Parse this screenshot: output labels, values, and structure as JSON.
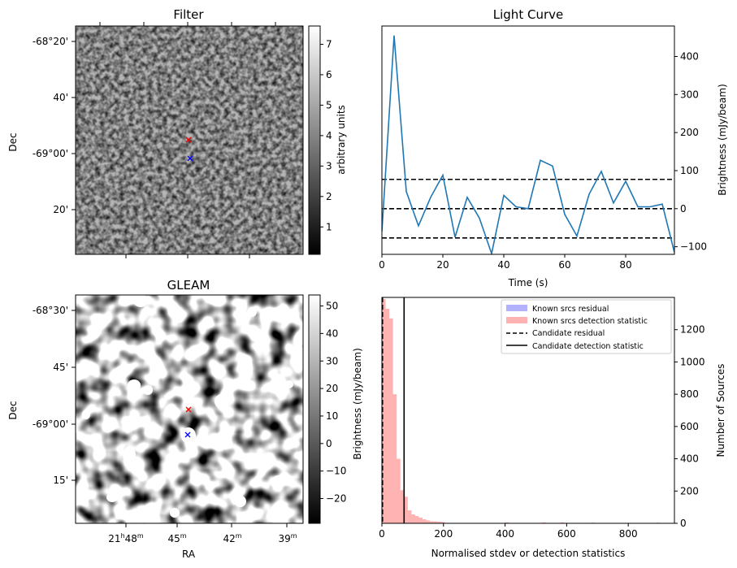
{
  "chart_data": [
    {
      "type": "heatmap",
      "title": "Filter",
      "xlabel": "",
      "ylabel": "Dec",
      "ytick_labels": [
        "-68°20'",
        "40'",
        "-69°00'",
        "20'"
      ],
      "colorbar": {
        "label": "arbitrary units",
        "range": [
          0.1,
          7.6
        ],
        "ticks": [
          1,
          2,
          3,
          4,
          5,
          6,
          7
        ],
        "colormap": "gray"
      },
      "markers": [
        {
          "label": "red x",
          "color": "#ff0000"
        },
        {
          "label": "blue x",
          "color": "#0000ff"
        }
      ]
    },
    {
      "type": "line",
      "title": "Light Curve",
      "xlabel": "Time (s)",
      "ylabel": "Brightness (mJy/beam)",
      "xlim": [
        0,
        96
      ],
      "ylim": [
        -120,
        480
      ],
      "xticks": [
        0,
        20,
        40,
        60,
        80
      ],
      "yticks": [
        -100,
        0,
        100,
        200,
        300,
        400
      ],
      "line_color": "#1f77b4",
      "x": [
        0,
        4,
        8,
        12,
        16,
        20,
        24,
        28,
        32,
        36,
        40,
        44,
        48,
        52,
        56,
        60,
        64,
        68,
        72,
        76,
        80,
        84,
        88,
        92,
        96
      ],
      "values": [
        -60,
        455,
        45,
        -45,
        30,
        88,
        -75,
        30,
        -25,
        -118,
        35,
        5,
        0,
        127,
        112,
        -15,
        -72,
        38,
        98,
        15,
        72,
        5,
        5,
        12,
        -115
      ],
      "hlines": [
        {
          "y": 77,
          "style": "dashed",
          "color": "#000000"
        },
        {
          "y": 0,
          "style": "dashed",
          "color": "#000000"
        },
        {
          "y": -77,
          "style": "dashed",
          "color": "#000000"
        }
      ]
    },
    {
      "type": "heatmap",
      "title": "GLEAM",
      "xlabel": "RA",
      "ylabel": "Dec",
      "xtick_labels": [
        {
          "main": "21",
          "sup1": "h",
          "mid": "48",
          "sup2": "m"
        },
        {
          "main": "",
          "sup1": "",
          "mid": "45",
          "sup2": "m"
        },
        {
          "main": "",
          "sup1": "",
          "mid": "42",
          "sup2": "m"
        },
        {
          "main": "",
          "sup1": "",
          "mid": "39",
          "sup2": "m"
        }
      ],
      "ytick_labels": [
        "-68°30'",
        "45'",
        "-69°00'",
        "15'"
      ],
      "colorbar": {
        "label": "Brightness (mJy/beam)",
        "range": [
          -29,
          54
        ],
        "ticks": [
          -20,
          -10,
          0,
          10,
          20,
          30,
          40,
          50
        ],
        "colormap": "gray"
      },
      "markers": [
        {
          "label": "red x",
          "color": "#ff0000"
        },
        {
          "label": "blue x",
          "color": "#0000ff"
        }
      ]
    },
    {
      "type": "bar",
      "title": "",
      "xlabel": "Normalised stdev or detection statistics",
      "ylabel": "Number of Sources",
      "xlim": [
        0,
        950
      ],
      "ylim": [
        0,
        1400
      ],
      "xticks": [
        0,
        200,
        400,
        600,
        800
      ],
      "yticks": [
        0,
        200,
        400,
        600,
        800,
        1000,
        1200
      ],
      "bin_width": 12,
      "series": [
        {
          "name": "Known srcs residual",
          "color": "#0000ff",
          "alpha": 0.3,
          "bin_starts": [],
          "values": []
        },
        {
          "name": "Known srcs detection statistic",
          "color": "#ff0000",
          "alpha": 0.3,
          "bin_starts": [
            0,
            12,
            24,
            36,
            48,
            60,
            72,
            84,
            96,
            108,
            120,
            132,
            144,
            156,
            168,
            180,
            192,
            400,
            520,
            580,
            680,
            890
          ],
          "values": [
            1390,
            1330,
            1270,
            800,
            400,
            205,
            165,
            80,
            55,
            45,
            35,
            25,
            18,
            12,
            12,
            10,
            8,
            6,
            5,
            5,
            4,
            4
          ]
        }
      ],
      "vlines": [
        {
          "name": "Candidate residual",
          "x": 2,
          "style": "dashed",
          "color": "#000000"
        },
        {
          "name": "Candidate detection statistic",
          "x": 72,
          "style": "solid",
          "color": "#000000"
        }
      ],
      "legend": "top-right"
    }
  ]
}
